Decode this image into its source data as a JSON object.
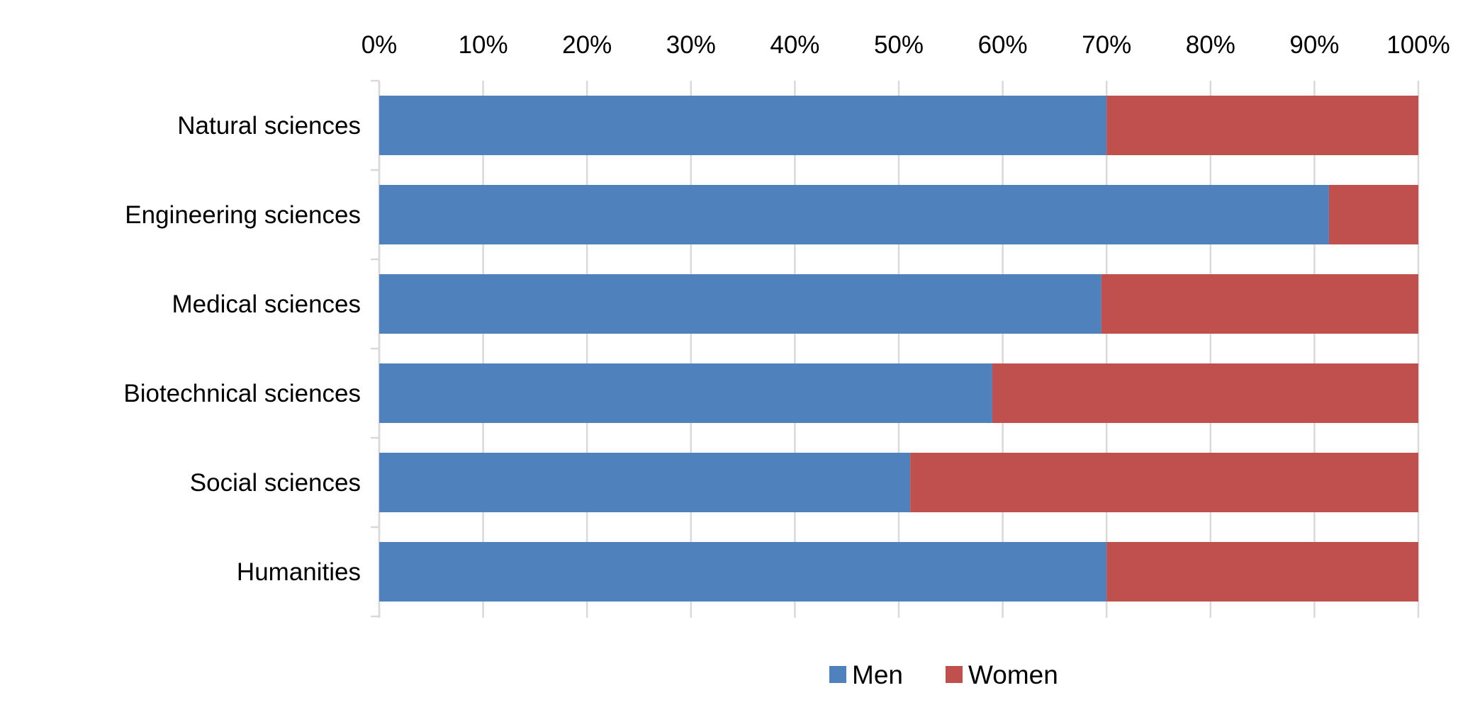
{
  "chart_data": {
    "type": "bar",
    "orientation": "horizontal",
    "stacked": "percent",
    "categories": [
      "Natural sciences",
      "Engineering sciences",
      "Medical sciences",
      "Biotechnical sciences",
      "Social sciences",
      "Humanities"
    ],
    "series": [
      {
        "name": "Men",
        "color": "#4F81BD",
        "values": [
          70,
          91.4,
          69.5,
          59,
          51.1,
          70
        ]
      },
      {
        "name": "Women",
        "color": "#C0504D",
        "values": [
          30,
          8.6,
          30.5,
          41,
          48.9,
          30
        ]
      }
    ],
    "xaxis": {
      "position": "top",
      "ticks": [
        "0%",
        "10%",
        "20%",
        "30%",
        "40%",
        "50%",
        "60%",
        "70%",
        "80%",
        "90%",
        "100%"
      ],
      "range": [
        0,
        100
      ]
    },
    "title": "",
    "xlabel": "",
    "ylabel": "",
    "grid": true,
    "legend": "bottom"
  }
}
